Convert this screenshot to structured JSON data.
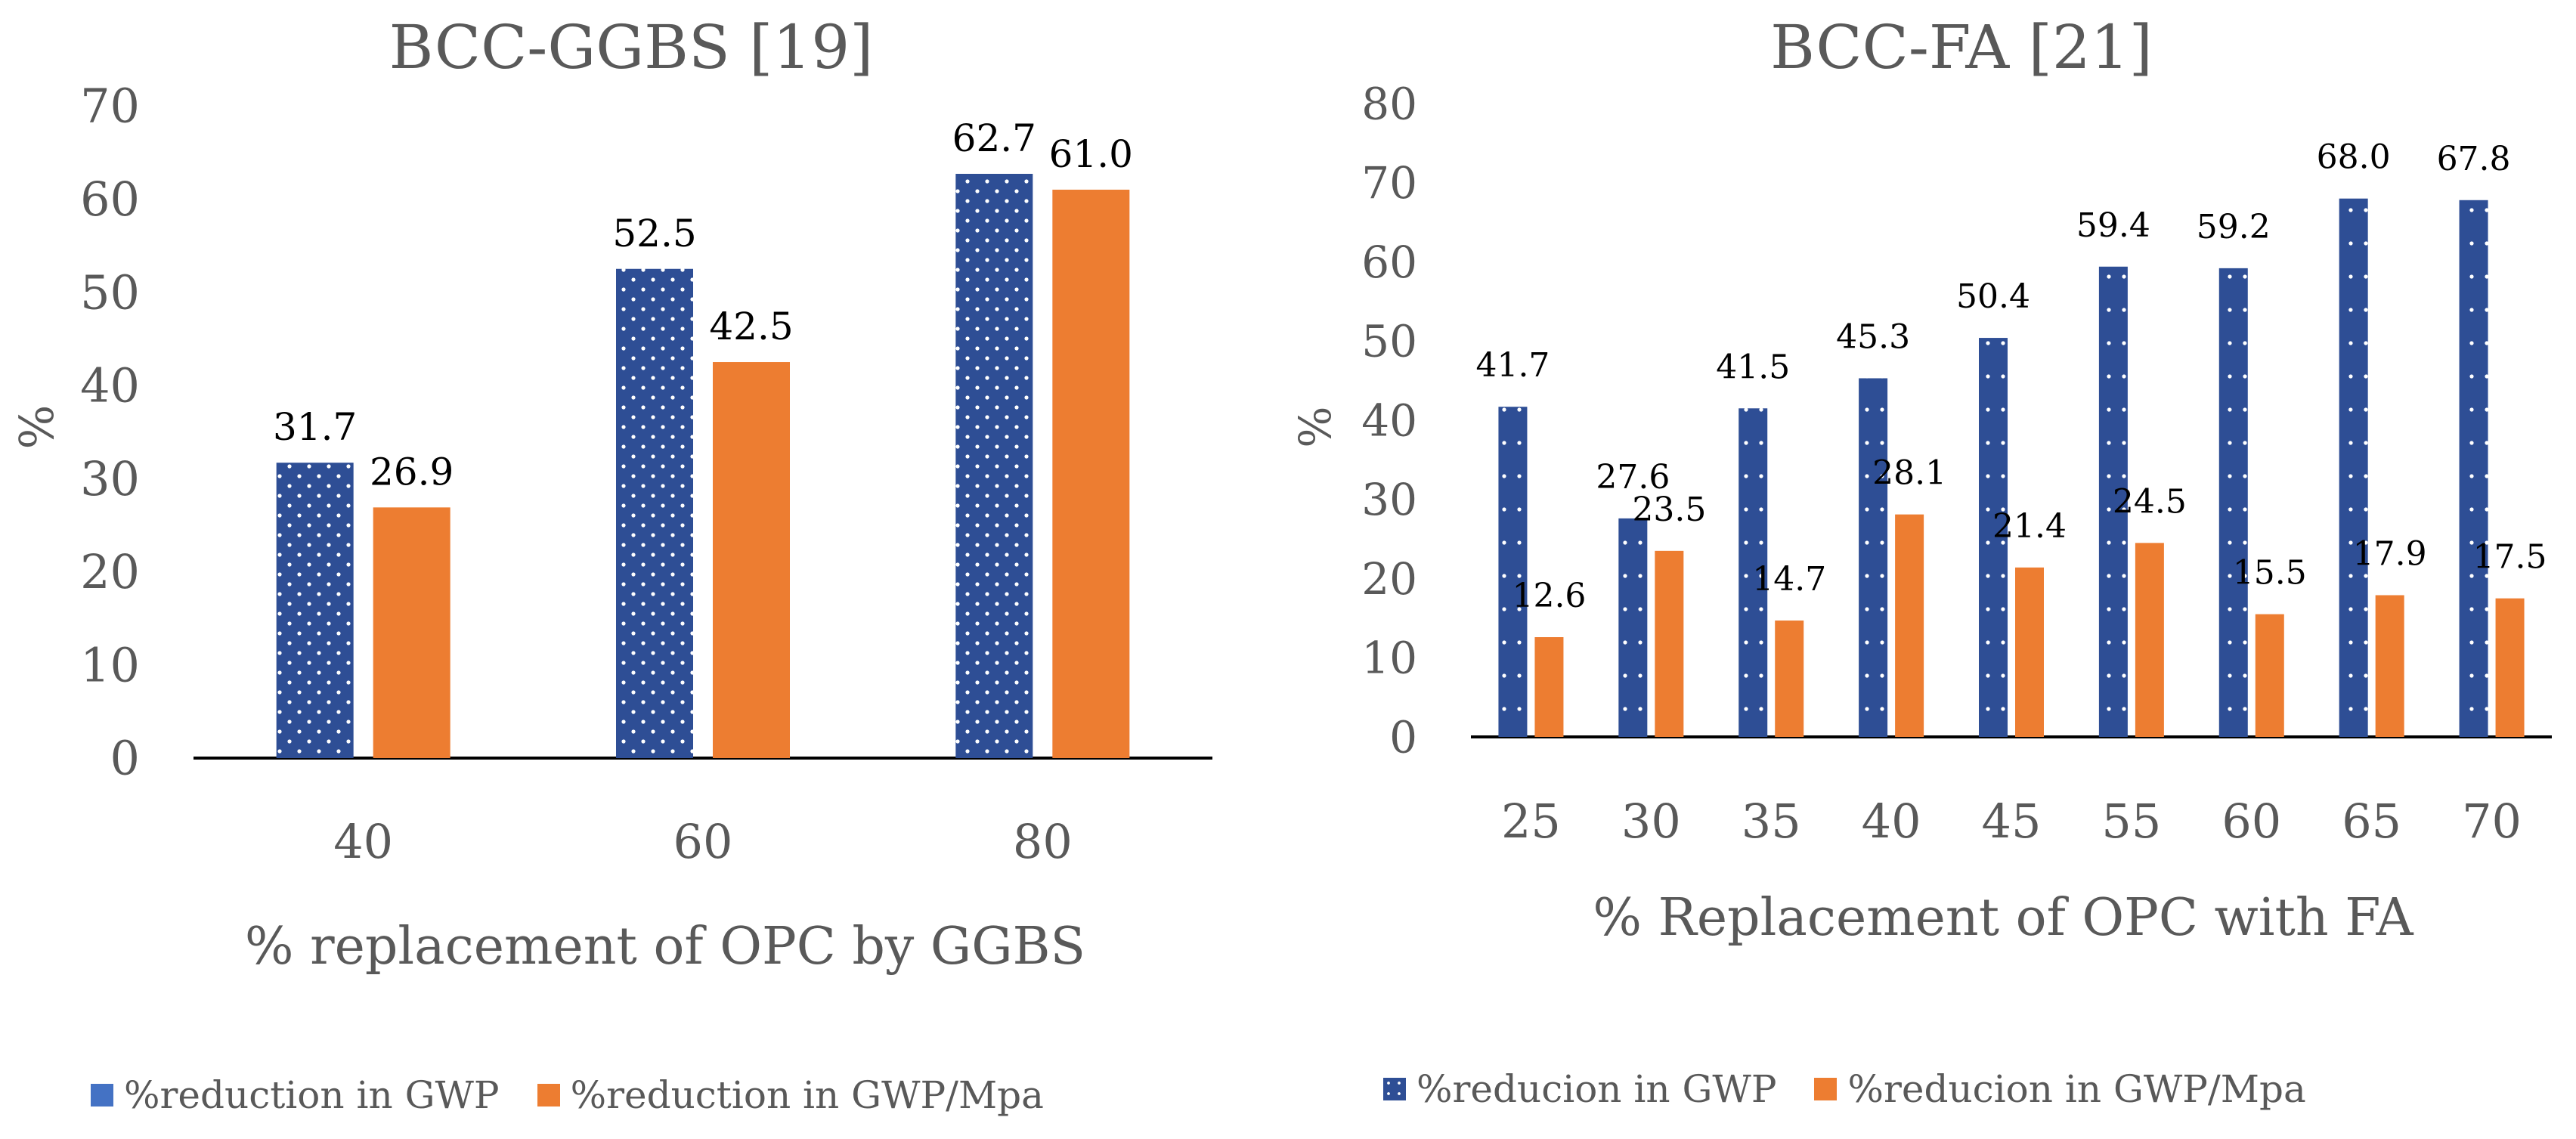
{
  "chart_data": [
    {
      "type": "bar",
      "title": "BCC-GGBS [19]",
      "xlabel": "% replacement of OPC by GGBS",
      "ylabel": "%",
      "ylim": [
        0,
        70
      ],
      "yticks": [
        "0",
        "10",
        "20",
        "30",
        "40",
        "50",
        "60",
        "70"
      ],
      "categories": [
        "40",
        "60",
        "80"
      ],
      "series": [
        {
          "name": "%reduction in GWP",
          "values": [
            31.7,
            52.5,
            62.7
          ],
          "labels": [
            "31.7",
            "52.5",
            "62.7"
          ],
          "color": "#2e4e95",
          "legend_color": "#4472c4"
        },
        {
          "name": "%reduction in GWP/Mpa",
          "values": [
            26.9,
            42.5,
            61.0
          ],
          "labels": [
            "26.9",
            "42.5",
            "61.0"
          ],
          "color": "#ed7d31"
        }
      ],
      "legend_position": "bottom"
    },
    {
      "type": "bar",
      "title": "BCC-FA [21]",
      "xlabel": "% Replacement of OPC with FA",
      "ylabel": "%",
      "ylim": [
        0,
        80
      ],
      "yticks": [
        "0",
        "10",
        "20",
        "30",
        "40",
        "50",
        "60",
        "70",
        "80"
      ],
      "categories": [
        "25",
        "30",
        "35",
        "40",
        "45",
        "55",
        "60",
        "65",
        "70"
      ],
      "series": [
        {
          "name": "%reducion in GWP",
          "values": [
            41.7,
            27.6,
            41.5,
            45.3,
            50.4,
            59.4,
            59.2,
            68.0,
            67.8
          ],
          "labels": [
            "41.7",
            "27.6",
            "41.5",
            "45.3",
            "50.4",
            "59.4",
            "59.2",
            "68.0",
            "67.8"
          ],
          "color": "#2e4e95"
        },
        {
          "name": "%reducion in GWP/Mpa",
          "values": [
            12.6,
            23.5,
            14.7,
            28.1,
            21.4,
            24.5,
            15.5,
            17.9,
            17.5
          ],
          "labels": [
            "12.6",
            "23.5",
            "14.7",
            "28.1",
            "21.4",
            "24.5",
            "15.5",
            "17.9",
            "17.5"
          ],
          "color": "#ed7d31"
        }
      ],
      "legend_position": "bottom"
    }
  ]
}
